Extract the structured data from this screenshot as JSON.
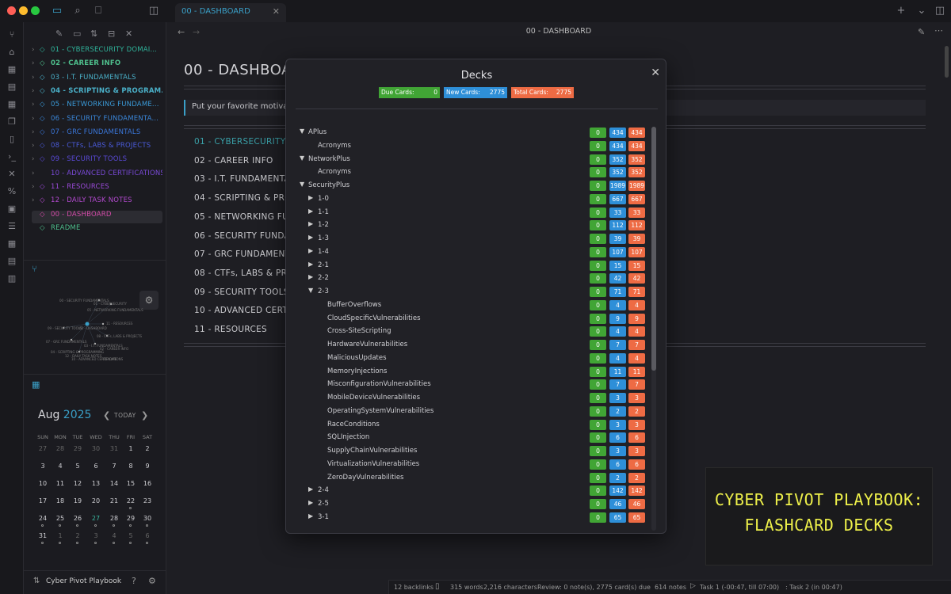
{
  "tab": {
    "title": "00 - DASHBOARD"
  },
  "header": {
    "nav_title": "00 - DASHBOARD"
  },
  "file_tree": [
    {
      "label": "01 - CYBERSECURITY DOMAI...",
      "color": "#2fb39a",
      "icon": "shield",
      "bold": false
    },
    {
      "label": "02 - CAREER INFO",
      "color": "#4fc08d",
      "icon": "car",
      "bold": true
    },
    {
      "label": "03 - I.T. FUNDAMENTALS",
      "color": "#4ab0c8",
      "icon": "monitor",
      "bold": false
    },
    {
      "label": "04 - SCRIPTING & PROGRAM...",
      "color": "#4ab0c8",
      "icon": "terminal",
      "bold": true
    },
    {
      "label": "05 - NETWORKING FUNDAME...",
      "color": "#3a9ad8",
      "icon": "network",
      "bold": false
    },
    {
      "label": "06 - SECURITY FUNDAMENTA...",
      "color": "#3a86d8",
      "icon": "key",
      "bold": false
    },
    {
      "label": "07 - GRC FUNDAMENTALS",
      "color": "#3a76d8",
      "icon": "doc",
      "bold": false
    },
    {
      "label": "08 - CTFs, LABS & PROJECTS",
      "color": "#4a5ad8",
      "icon": "flag",
      "bold": false
    },
    {
      "label": "09 - SECURITY TOOLS",
      "color": "#5a4ad8",
      "icon": "tool",
      "bold": false
    },
    {
      "label": "10 - ADVANCED CERTIFICATIONS",
      "color": "#7a4ad8",
      "icon": "",
      "bold": false
    },
    {
      "label": "11 - RESOURCES",
      "color": "#9a4ad8",
      "icon": "wrench",
      "bold": false
    },
    {
      "label": "12 - DAILY TASK NOTES",
      "color": "#b44ad0",
      "icon": "calendar",
      "bold": false
    },
    {
      "label": "00 - DASHBOARD",
      "color": "#d44aa8",
      "icon": "home",
      "bold": false,
      "active": true
    },
    {
      "label": "README",
      "color": "#4fc08d",
      "icon": "readme",
      "bold": false
    }
  ],
  "document": {
    "title": "00 - DASHBOARD",
    "callout": "Put your favorite motivat",
    "links": [
      {
        "text": "01 - CYBERSECURITY D",
        "color": "#3aa0a8"
      },
      {
        "text": "02 - CAREER INFO",
        "color": "#c8c8cc"
      },
      {
        "text": "03 - I.T. FUNDAMENTAL",
        "color": "#c8c8cc"
      },
      {
        "text": "04 - SCRIPTING & PRO",
        "color": "#c8c8cc"
      },
      {
        "text": "05 - NETWORKING FUN",
        "color": "#c8c8cc"
      },
      {
        "text": "06 - SECURITY FUNDA",
        "color": "#c8c8cc"
      },
      {
        "text": "07 - GRC FUNDAMENTA",
        "color": "#c8c8cc"
      },
      {
        "text": "08 - CTFs, LABS & PRO",
        "color": "#c8c8cc"
      },
      {
        "text": "09 - SECURITY TOOLS",
        "color": "#c8c8cc"
      },
      {
        "text": "10 - ADVANCED CERTIF",
        "color": "#c8c8cc"
      },
      {
        "text": "11 - RESOURCES",
        "color": "#c8c8cc"
      }
    ]
  },
  "graph": {
    "labels": [
      "00 - SECURITY FUNDAMENTALS",
      "01 - CYBERSECURITY",
      "05 - NETWORKING FUNDAMENTALS",
      "11 - RESOURCES",
      "09 - SECURITY TOOLS",
      "00 - DASHBOARD",
      "08 - CTFs, LABS & PROJECTS",
      "07 - GRC FUNDAMENTALS",
      "03 - I.T. FUNDAMENTALS",
      "02 - CAREER INFO",
      "04 - SCRIPTING & PROGRAMMING",
      "12 - DAILY TASK NOTES",
      "10 - ADVANCED CERTIFICATIONS",
      "README"
    ]
  },
  "calendar": {
    "month": "Aug",
    "year": "2025",
    "today_label": "TODAY",
    "dow": [
      "SUN",
      "MON",
      "TUE",
      "WED",
      "THU",
      "FRI",
      "SAT"
    ],
    "weeks": [
      [
        [
          "27",
          "muted"
        ],
        [
          "28",
          "muted"
        ],
        [
          "29",
          "muted"
        ],
        [
          "30",
          "muted"
        ],
        [
          "31",
          "muted"
        ],
        [
          "1",
          "normal"
        ],
        [
          "2",
          "normal"
        ]
      ],
      [
        [
          "3",
          "normal"
        ],
        [
          "4",
          "normal"
        ],
        [
          "5",
          "normal"
        ],
        [
          "6",
          "normal"
        ],
        [
          "7",
          "normal"
        ],
        [
          "8",
          "normal"
        ],
        [
          "9",
          "normal"
        ]
      ],
      [
        [
          "10",
          "normal"
        ],
        [
          "11",
          "normal"
        ],
        [
          "12",
          "normal"
        ],
        [
          "13",
          "normal"
        ],
        [
          "14",
          "normal"
        ],
        [
          "15",
          "normal"
        ],
        [
          "16",
          "normal"
        ]
      ],
      [
        [
          "17",
          "normal"
        ],
        [
          "18",
          "normal"
        ],
        [
          "19",
          "normal"
        ],
        [
          "20",
          "normal"
        ],
        [
          "21",
          "normal"
        ],
        [
          "22",
          "normal"
        ],
        [
          "23",
          "normal"
        ]
      ],
      [
        [
          "24",
          "normal"
        ],
        [
          "25",
          "normal"
        ],
        [
          "26",
          "normal"
        ],
        [
          "27",
          "today"
        ],
        [
          "28",
          "normal"
        ],
        [
          "29",
          "normal"
        ],
        [
          "30",
          "normal"
        ]
      ],
      [
        [
          "31",
          "normal"
        ],
        [
          "1",
          "muted"
        ],
        [
          "2",
          "muted"
        ],
        [
          "3",
          "muted"
        ],
        [
          "4",
          "muted"
        ],
        [
          "5",
          "muted"
        ],
        [
          "6",
          "muted"
        ]
      ]
    ]
  },
  "vault": {
    "name": "Cyber Pivot Playbook"
  },
  "status_bar": {
    "backlinks": "12 backlinks",
    "words": "315 words",
    "characters": "2,216 characters",
    "review": "Review: 0 note(s), 2775 card(s) due",
    "notes": "614 notes",
    "task1": "Task 1 (-00:47, till 07:00)",
    "task2": ": Task 2 (in 00:47)"
  },
  "modal": {
    "title": "Decks",
    "summary": [
      {
        "label": "Due Cards:",
        "value": "0",
        "color": "#41a535"
      },
      {
        "label": "New Cards:",
        "value": "2775",
        "color": "#2e8fd8"
      },
      {
        "label": "Total Cards:",
        "value": "2775",
        "color": "#ee6b44"
      }
    ],
    "decks": [
      {
        "name": "APlus",
        "level": 0,
        "toggle": "open",
        "due": "0",
        "new": "434",
        "total": "434"
      },
      {
        "name": "Acronyms",
        "level": 1,
        "toggle": "",
        "due": "0",
        "new": "434",
        "total": "434"
      },
      {
        "name": "NetworkPlus",
        "level": 0,
        "toggle": "open",
        "due": "0",
        "new": "352",
        "total": "352"
      },
      {
        "name": "Acronyms",
        "level": 1,
        "toggle": "",
        "due": "0",
        "new": "352",
        "total": "352"
      },
      {
        "name": "SecurityPlus",
        "level": 0,
        "toggle": "open",
        "due": "0",
        "new": "1989",
        "total": "1989"
      },
      {
        "name": "1-0",
        "level": 1,
        "toggle": "closed",
        "due": "0",
        "new": "667",
        "total": "667"
      },
      {
        "name": "1-1",
        "level": 1,
        "toggle": "closed",
        "due": "0",
        "new": "33",
        "total": "33"
      },
      {
        "name": "1-2",
        "level": 1,
        "toggle": "closed",
        "due": "0",
        "new": "112",
        "total": "112"
      },
      {
        "name": "1-3",
        "level": 1,
        "toggle": "closed",
        "due": "0",
        "new": "39",
        "total": "39"
      },
      {
        "name": "1-4",
        "level": 1,
        "toggle": "closed",
        "due": "0",
        "new": "107",
        "total": "107"
      },
      {
        "name": "2-1",
        "level": 1,
        "toggle": "closed",
        "due": "0",
        "new": "15",
        "total": "15"
      },
      {
        "name": "2-2",
        "level": 1,
        "toggle": "closed",
        "due": "0",
        "new": "42",
        "total": "42"
      },
      {
        "name": "2-3",
        "level": 1,
        "toggle": "open",
        "due": "0",
        "new": "71",
        "total": "71"
      },
      {
        "name": "BufferOverflows",
        "level": 2,
        "toggle": "",
        "due": "0",
        "new": "4",
        "total": "4"
      },
      {
        "name": "CloudSpecificVulnerabilities",
        "level": 2,
        "toggle": "",
        "due": "0",
        "new": "9",
        "total": "9"
      },
      {
        "name": "Cross-SiteScripting",
        "level": 2,
        "toggle": "",
        "due": "0",
        "new": "4",
        "total": "4"
      },
      {
        "name": "HardwareVulnerabilities",
        "level": 2,
        "toggle": "",
        "due": "0",
        "new": "7",
        "total": "7"
      },
      {
        "name": "MaliciousUpdates",
        "level": 2,
        "toggle": "",
        "due": "0",
        "new": "4",
        "total": "4"
      },
      {
        "name": "MemoryInjections",
        "level": 2,
        "toggle": "",
        "due": "0",
        "new": "11",
        "total": "11"
      },
      {
        "name": "MisconfigurationVulnerabilities",
        "level": 2,
        "toggle": "",
        "due": "0",
        "new": "7",
        "total": "7"
      },
      {
        "name": "MobileDeviceVulnerabilities",
        "level": 2,
        "toggle": "",
        "due": "0",
        "new": "3",
        "total": "3"
      },
      {
        "name": "OperatingSystemVulnerabilities",
        "level": 2,
        "toggle": "",
        "due": "0",
        "new": "2",
        "total": "2"
      },
      {
        "name": "RaceConditions",
        "level": 2,
        "toggle": "",
        "due": "0",
        "new": "3",
        "total": "3"
      },
      {
        "name": "SQLInjection",
        "level": 2,
        "toggle": "",
        "due": "0",
        "new": "6",
        "total": "6"
      },
      {
        "name": "SupplyChainVulnerabilities",
        "level": 2,
        "toggle": "",
        "due": "0",
        "new": "3",
        "total": "3"
      },
      {
        "name": "VirtualizationVulnerabilities",
        "level": 2,
        "toggle": "",
        "due": "0",
        "new": "6",
        "total": "6"
      },
      {
        "name": "ZeroDayVulnerabilities",
        "level": 2,
        "toggle": "",
        "due": "0",
        "new": "2",
        "total": "2"
      },
      {
        "name": "2-4",
        "level": 1,
        "toggle": "closed",
        "due": "0",
        "new": "142",
        "total": "142"
      },
      {
        "name": "2-5",
        "level": 1,
        "toggle": "closed",
        "due": "0",
        "new": "46",
        "total": "46"
      },
      {
        "name": "3-1",
        "level": 1,
        "toggle": "closed",
        "due": "0",
        "new": "65",
        "total": "65"
      }
    ]
  },
  "banner": {
    "line1": "CYBER PIVOT PLAYBOOK:",
    "line2": "FLASHCARD DECKS",
    "text_color": "#eef04a"
  }
}
